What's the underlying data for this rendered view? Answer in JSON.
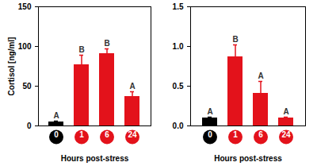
{
  "chart_data": [
    {
      "type": "bar",
      "categories": [
        "0",
        "1",
        "6",
        "24"
      ],
      "values": [
        5,
        77,
        91,
        37
      ],
      "errors": [
        1,
        12,
        6,
        6
      ],
      "annotations": [
        "A",
        "B",
        "B",
        "A"
      ],
      "colors": [
        "#000000",
        "#e3121b",
        "#e3121b",
        "#e3121b"
      ],
      "x_label": "Hours post-stress",
      "y_label": "Cortisol [ng/ml]",
      "ylim": [
        0,
        150
      ],
      "yticks": [
        0,
        50,
        100,
        150
      ]
    },
    {
      "type": "bar",
      "categories": [
        "0",
        "1",
        "6",
        "24"
      ],
      "values": [
        0.1,
        0.87,
        0.41,
        0.1
      ],
      "errors": [
        0.01,
        0.15,
        0.15,
        0.01
      ],
      "annotations": [
        "A",
        "B",
        "A",
        "A"
      ],
      "colors": [
        "#000000",
        "#e3121b",
        "#e3121b",
        "#e3121b"
      ],
      "x_label": "Hours post-stress",
      "ylim": [
        0,
        1.5
      ],
      "yticks": [
        {
          "value": 0,
          "label": "0.0"
        },
        0.5,
        {
          "value": 1,
          "label": "1.0"
        },
        1.5
      ]
    }
  ]
}
